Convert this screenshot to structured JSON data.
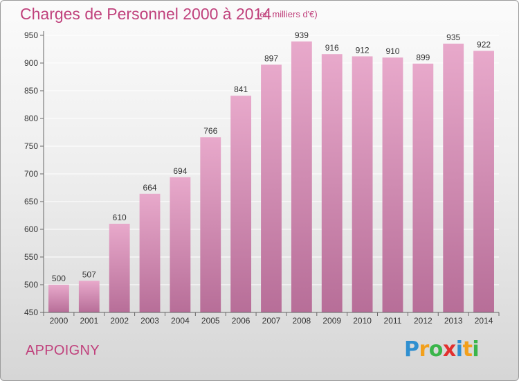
{
  "chart_data": {
    "type": "bar",
    "title": "Charges de Personnel 2000 à 2014",
    "subtitle": "(en milliers d'€)",
    "categories": [
      "2000",
      "2001",
      "2002",
      "2003",
      "2004",
      "2005",
      "2006",
      "2007",
      "2008",
      "2009",
      "2010",
      "2011",
      "2012",
      "2013",
      "2014"
    ],
    "values": [
      500,
      507,
      610,
      664,
      694,
      766,
      841,
      897,
      939,
      916,
      912,
      910,
      899,
      935,
      922
    ],
    "ylim": [
      450,
      950
    ],
    "yticks": [
      450,
      500,
      550,
      600,
      650,
      700,
      750,
      800,
      850,
      900,
      950
    ],
    "grid": true,
    "bar_color": "#d98cb5"
  },
  "location": "APPOIGNY",
  "logo": {
    "letters": [
      "P",
      "r",
      "o",
      "x",
      "i",
      "t",
      "i"
    ],
    "colors": [
      "#2f8fd0",
      "#f2a01c",
      "#3ab54a",
      "#e2302e",
      "#2f8fd0",
      "#f2a01c",
      "#3ab54a"
    ]
  },
  "colors": {
    "accent": "#c0417c"
  }
}
